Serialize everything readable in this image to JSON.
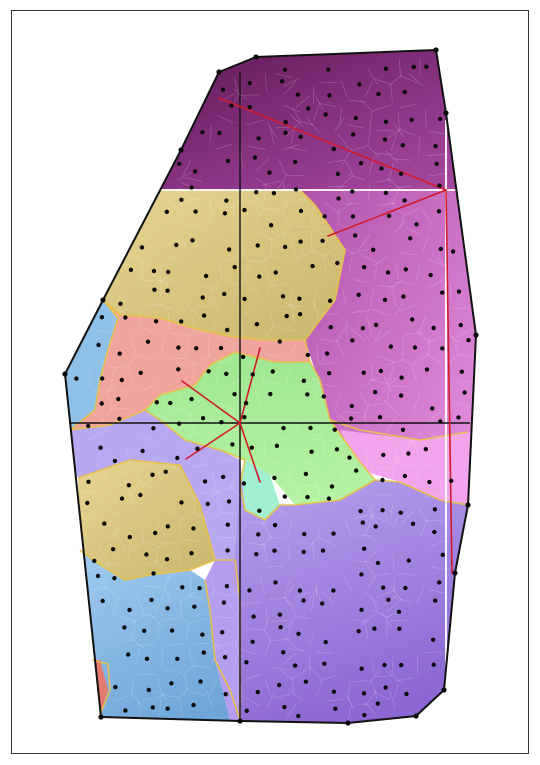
{
  "diagram": {
    "kind": "voronoi-partition",
    "colors": {
      "frame_bg": "#ffffff",
      "frame_border": "#333333",
      "hull_edge": "#111111",
      "region_border": "#e8c24a",
      "guide_line_black": "#111111",
      "guide_line_white": "#ffffff",
      "link_line": "#d11a2a",
      "site_point": "#0b0b0b",
      "region_dark_purple": "#6d2365",
      "region_magenta": "#cc6cc6",
      "region_khaki": "#e0cf86",
      "region_salmon": "#f3a4a0",
      "region_light_green": "#a9ec96",
      "region_mint": "#a2f0d2",
      "region_lavender": "#b6a4f0",
      "region_pink": "#f3a2ec",
      "region_violet": "#9f82e2",
      "region_sky_blue": "#91c2e8",
      "region_red_small": "#e57a6e"
    },
    "icons": []
  }
}
